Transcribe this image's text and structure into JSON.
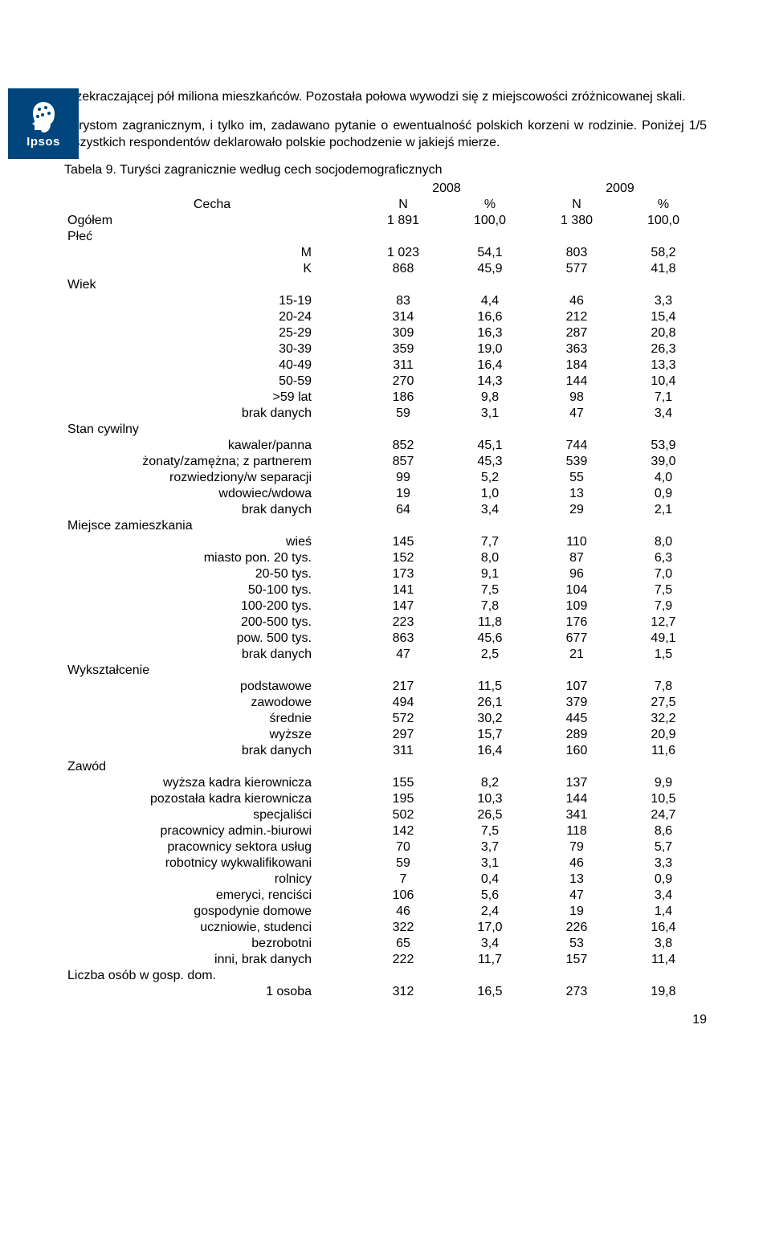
{
  "logo": {
    "brand": "Ipsos"
  },
  "paragraphs": {
    "p1": "przekraczającej pół miliona mieszkańców. Pozostała połowa wywodzi się z miejscowości zróżnicowanej skali.",
    "p2": "Turystom zagranicznym, i tylko im, zadawano pytanie o ewentualność polskich korzeni w rodzinie. Poniżej 1/5 wszystkich respondentów deklarowało polskie pochodzenie w jakiejś mierze."
  },
  "table": {
    "title": "Tabela 9. Turyści zagranicznie według cech socjodemograficznych",
    "year1": "2008",
    "year2": "2009",
    "col_label": "Cecha",
    "col_n": "N",
    "col_p": "%",
    "sections": [
      {
        "type": "row",
        "label": "Ogółem",
        "n1": "1 891",
        "p1": "100,0",
        "n2": "1 380",
        "p2": "100,0"
      },
      {
        "type": "section",
        "label": "Płeć"
      },
      {
        "type": "sub",
        "label": "M",
        "n1": "1 023",
        "p1": "54,1",
        "n2": "803",
        "p2": "58,2"
      },
      {
        "type": "sub",
        "label": "K",
        "n1": "868",
        "p1": "45,9",
        "n2": "577",
        "p2": "41,8"
      },
      {
        "type": "section",
        "label": "Wiek"
      },
      {
        "type": "sub",
        "label": "15-19",
        "n1": "83",
        "p1": "4,4",
        "n2": "46",
        "p2": "3,3"
      },
      {
        "type": "sub",
        "label": "20-24",
        "n1": "314",
        "p1": "16,6",
        "n2": "212",
        "p2": "15,4"
      },
      {
        "type": "sub",
        "label": "25-29",
        "n1": "309",
        "p1": "16,3",
        "n2": "287",
        "p2": "20,8"
      },
      {
        "type": "sub",
        "label": "30-39",
        "n1": "359",
        "p1": "19,0",
        "n2": "363",
        "p2": "26,3"
      },
      {
        "type": "sub",
        "label": "40-49",
        "n1": "311",
        "p1": "16,4",
        "n2": "184",
        "p2": "13,3"
      },
      {
        "type": "sub",
        "label": "50-59",
        "n1": "270",
        "p1": "14,3",
        "n2": "144",
        "p2": "10,4"
      },
      {
        "type": "sub",
        "label": ">59 lat",
        "n1": "186",
        "p1": "9,8",
        "n2": "98",
        "p2": "7,1"
      },
      {
        "type": "sub",
        "label": "brak danych",
        "n1": "59",
        "p1": "3,1",
        "n2": "47",
        "p2": "3,4"
      },
      {
        "type": "section",
        "label": "Stan cywilny"
      },
      {
        "type": "sub",
        "label": "kawaler/panna",
        "n1": "852",
        "p1": "45,1",
        "n2": "744",
        "p2": "53,9"
      },
      {
        "type": "sub",
        "label": "żonaty/zamężna; z partnerem",
        "n1": "857",
        "p1": "45,3",
        "n2": "539",
        "p2": "39,0"
      },
      {
        "type": "sub",
        "label": "rozwiedziony/w separacji",
        "n1": "99",
        "p1": "5,2",
        "n2": "55",
        "p2": "4,0"
      },
      {
        "type": "sub",
        "label": "wdowiec/wdowa",
        "n1": "19",
        "p1": "1,0",
        "n2": "13",
        "p2": "0,9"
      },
      {
        "type": "sub",
        "label": "brak danych",
        "n1": "64",
        "p1": "3,4",
        "n2": "29",
        "p2": "2,1"
      },
      {
        "type": "section",
        "label": "Miejsce zamieszkania"
      },
      {
        "type": "sub",
        "label": "wieś",
        "n1": "145",
        "p1": "7,7",
        "n2": "110",
        "p2": "8,0"
      },
      {
        "type": "sub",
        "label": "miasto pon. 20 tys.",
        "n1": "152",
        "p1": "8,0",
        "n2": "87",
        "p2": "6,3"
      },
      {
        "type": "sub",
        "label": "20-50 tys.",
        "n1": "173",
        "p1": "9,1",
        "n2": "96",
        "p2": "7,0"
      },
      {
        "type": "sub",
        "label": "50-100 tys.",
        "n1": "141",
        "p1": "7,5",
        "n2": "104",
        "p2": "7,5"
      },
      {
        "type": "sub",
        "label": "100-200 tys.",
        "n1": "147",
        "p1": "7,8",
        "n2": "109",
        "p2": "7,9"
      },
      {
        "type": "sub",
        "label": "200-500 tys.",
        "n1": "223",
        "p1": "11,8",
        "n2": "176",
        "p2": "12,7"
      },
      {
        "type": "sub",
        "label": "pow. 500 tys.",
        "n1": "863",
        "p1": "45,6",
        "n2": "677",
        "p2": "49,1"
      },
      {
        "type": "sub",
        "label": "brak danych",
        "n1": "47",
        "p1": "2,5",
        "n2": "21",
        "p2": "1,5"
      },
      {
        "type": "section",
        "label": "Wykształcenie"
      },
      {
        "type": "sub",
        "label": "podstawowe",
        "n1": "217",
        "p1": "11,5",
        "n2": "107",
        "p2": "7,8"
      },
      {
        "type": "sub",
        "label": "zawodowe",
        "n1": "494",
        "p1": "26,1",
        "n2": "379",
        "p2": "27,5"
      },
      {
        "type": "sub",
        "label": "średnie",
        "n1": "572",
        "p1": "30,2",
        "n2": "445",
        "p2": "32,2"
      },
      {
        "type": "sub",
        "label": "wyższe",
        "n1": "297",
        "p1": "15,7",
        "n2": "289",
        "p2": "20,9"
      },
      {
        "type": "sub",
        "label": "brak danych",
        "n1": "311",
        "p1": "16,4",
        "n2": "160",
        "p2": "11,6"
      },
      {
        "type": "section",
        "label": "Zawód"
      },
      {
        "type": "sub",
        "label": "wyższa kadra kierownicza",
        "n1": "155",
        "p1": "8,2",
        "n2": "137",
        "p2": "9,9"
      },
      {
        "type": "sub",
        "label": "pozostała kadra kierownicza",
        "n1": "195",
        "p1": "10,3",
        "n2": "144",
        "p2": "10,5"
      },
      {
        "type": "sub",
        "label": "specjaliści",
        "n1": "502",
        "p1": "26,5",
        "n2": "341",
        "p2": "24,7"
      },
      {
        "type": "sub",
        "label": "pracownicy admin.-biurowi",
        "n1": "142",
        "p1": "7,5",
        "n2": "118",
        "p2": "8,6"
      },
      {
        "type": "sub",
        "label": "pracownicy sektora usług",
        "n1": "70",
        "p1": "3,7",
        "n2": "79",
        "p2": "5,7"
      },
      {
        "type": "sub",
        "label": "robotnicy wykwalifikowani",
        "n1": "59",
        "p1": "3,1",
        "n2": "46",
        "p2": "3,3"
      },
      {
        "type": "sub",
        "label": "rolnicy",
        "n1": "7",
        "p1": "0,4",
        "n2": "13",
        "p2": "0,9"
      },
      {
        "type": "sub",
        "label": "emeryci, renciści",
        "n1": "106",
        "p1": "5,6",
        "n2": "47",
        "p2": "3,4"
      },
      {
        "type": "sub",
        "label": "gospodynie domowe",
        "n1": "46",
        "p1": "2,4",
        "n2": "19",
        "p2": "1,4"
      },
      {
        "type": "sub",
        "label": "uczniowie, studenci",
        "n1": "322",
        "p1": "17,0",
        "n2": "226",
        "p2": "16,4"
      },
      {
        "type": "sub",
        "label": "bezrobotni",
        "n1": "65",
        "p1": "3,4",
        "n2": "53",
        "p2": "3,8"
      },
      {
        "type": "sub",
        "label": "inni, brak danych",
        "n1": "222",
        "p1": "11,7",
        "n2": "157",
        "p2": "11,4"
      },
      {
        "type": "section",
        "label": "Liczba osób w gosp. dom."
      },
      {
        "type": "sub",
        "label": "1 osoba",
        "n1": "312",
        "p1": "16,5",
        "n2": "273",
        "p2": "19,8"
      }
    ]
  },
  "page_number": "19",
  "colors": {
    "logo_bg": "#00457c",
    "text": "#000000",
    "bg": "#ffffff"
  }
}
